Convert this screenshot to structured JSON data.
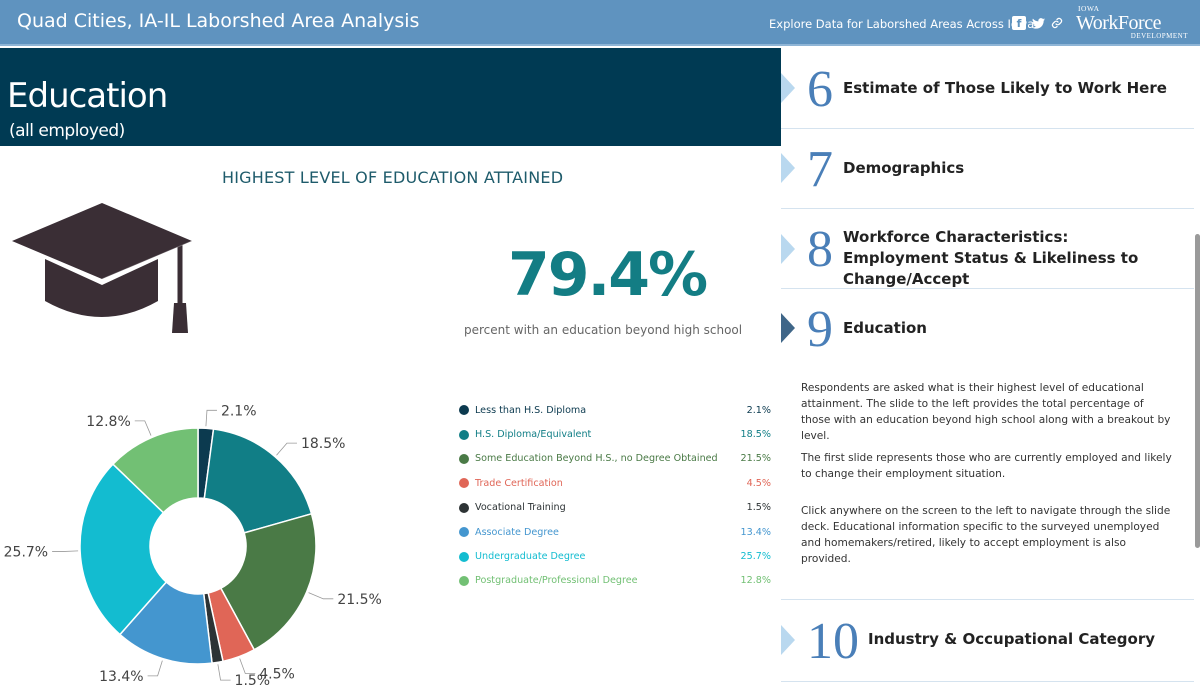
{
  "header": {
    "title": "Quad Cities, IA-IL Laborshed Area Analysis",
    "explore_link": "Explore Data for Laborshed Areas Across Iowa",
    "share_icons": [
      "facebook-icon",
      "twitter-icon",
      "link-icon"
    ],
    "logo": {
      "line1": "IOWA",
      "line2": "WorkForce",
      "line3": "DEVELOPMENT"
    },
    "bar_color": "#5f93bf"
  },
  "slide": {
    "banner_title": "Education",
    "banner_subtitle": "(all employed)",
    "banner_color": "#003a53",
    "heading": "HIGHEST LEVEL OF EDUCATION ATTAINED",
    "graduation_cap_icon": "graduation-cap-icon",
    "big_percent": "79.4%",
    "big_percent_caption": "percent with an education beyond high school",
    "legend": [
      {
        "label": "Less than H.S. Diploma",
        "value": "2.1%",
        "color": "#0c3a4f"
      },
      {
        "label": "H.S. Diploma/Equivalent",
        "value": "18.5%",
        "color": "#117e86"
      },
      {
        "label": "Some Education Beyond H.S., no Degree Obtained",
        "value": "21.5%",
        "color": "#4a7a46"
      },
      {
        "label": "Trade Certification",
        "value": "4.5%",
        "color": "#e06657"
      },
      {
        "label": "Vocational Training",
        "value": "1.5%",
        "color": "#2d3335"
      },
      {
        "label": "Associate Degree",
        "value": "13.4%",
        "color": "#4496cf"
      },
      {
        "label": "Undergraduate Degree",
        "value": "25.7%",
        "color": "#13bcd0"
      },
      {
        "label": "Postgraduate/Professional Degree",
        "value": "12.8%",
        "color": "#72c074"
      }
    ]
  },
  "chart_data": {
    "type": "pie",
    "title": "HIGHEST LEVEL OF EDUCATION ATTAINED",
    "categories": [
      "Less than H.S. Diploma",
      "H.S. Diploma/Equivalent",
      "Some Education Beyond H.S., no Degree Obtained",
      "Trade Certification",
      "Vocational Training",
      "Associate Degree",
      "Undergraduate Degree",
      "Postgraduate/Professional Degree"
    ],
    "values": [
      2.1,
      18.5,
      21.5,
      4.5,
      1.5,
      13.4,
      25.7,
      12.8
    ],
    "data_labels": [
      "2.1%",
      "18.5%",
      "21.5%",
      "4.5%",
      "1.5%",
      "13.4%",
      "25.7%",
      "12.8%"
    ],
    "colors": [
      "#0c3a4f",
      "#117e86",
      "#4a7a46",
      "#e06657",
      "#2d3335",
      "#4496cf",
      "#13bcd0",
      "#72c074"
    ],
    "donut": true
  },
  "panel": {
    "items": [
      {
        "number": "6",
        "label": "Estimate of Those Likely to Work Here",
        "active": false
      },
      {
        "number": "7",
        "label": "Demographics",
        "active": false
      },
      {
        "number": "8",
        "label": "Workforce Characteristics: Employment Status & Likeliness to Change/Accept",
        "active": false
      },
      {
        "number": "9",
        "label": "Education",
        "active": true
      },
      {
        "number": "10",
        "label": "Industry & Occupational Category",
        "active": false
      }
    ],
    "description": [
      "Respondents are asked what is their highest level of educational attainment. The slide to the left provides the total percentage of those with an education beyond high school along with a breakout by level.",
      "The first slide represents those who are currently employed and likely to change their employment situation.",
      "Click anywhere on the screen to the left to navigate through the slide deck. Educational information specific to the surveyed unemployed and homemakers/retired, likely to accept employment is also provided."
    ]
  }
}
